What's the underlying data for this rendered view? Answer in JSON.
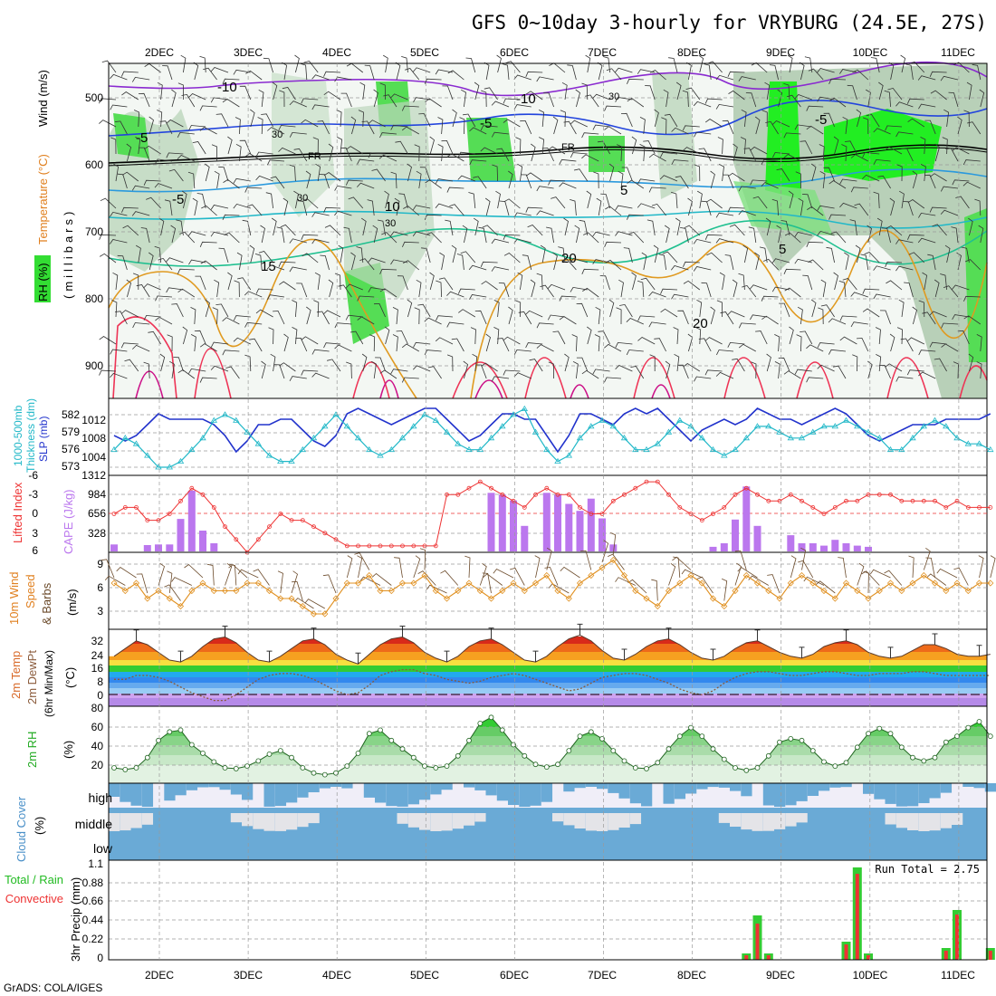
{
  "title": "GFS 0~10day 3-hourly for VRYBURG (24.5E, 27S)",
  "footer": "GrADS: COLA/IGES",
  "colors": {
    "green": "#33cc33",
    "red": "#ee3333",
    "blue": "#2233cc",
    "cyan": "#22b8c8",
    "purple": "#bb77ee",
    "orange": "#e09020",
    "brown": "#8a5a3a",
    "cloud": "#6aaad6"
  },
  "dates": [
    "2DEC",
    "3DEC",
    "4DEC",
    "5DEC",
    "6DEC",
    "7DEC",
    "8DEC",
    "9DEC",
    "10DEC",
    "11DEC"
  ],
  "panels": {
    "upper": {
      "labels": [
        "RH (%)",
        "Temperature (°C)",
        "Wind (m/s)",
        "(millibars)"
      ],
      "ticks": [
        "500",
        "600",
        "700",
        "800",
        "900"
      ],
      "contour_labels": [
        "-10",
        "-10",
        "-5",
        "-5",
        "-5",
        "FR",
        "FR",
        "-5",
        "5",
        "10",
        "15",
        "20",
        "20",
        "5",
        "30",
        "30",
        "30",
        "30"
      ]
    },
    "slp": {
      "labels": [
        "1000-500mb",
        "Thickness (dm)",
        "SLP (mb)"
      ],
      "thick_ticks": [
        "582",
        "579",
        "576",
        "573"
      ],
      "slp_ticks": [
        "1012",
        "1008",
        "1004"
      ]
    },
    "cape": {
      "labels": [
        "Lifted Index",
        "CAPE (J/kg)"
      ],
      "li_ticks": [
        "-6",
        "-3",
        "0",
        "3",
        "6"
      ],
      "cape_ticks": [
        "1312",
        "984",
        "656",
        "328"
      ]
    },
    "wind10": {
      "labels": [
        "10m Wind",
        "Speed",
        "& Barbs"
      ],
      "unit": "(m/s)",
      "ticks": [
        "9",
        "6",
        "3"
      ]
    },
    "temp": {
      "labels": [
        "2m Temp",
        "2m DewPt",
        "(6hr Min/Max)"
      ],
      "unit": "(°C)",
      "ticks": [
        "32",
        "24",
        "16",
        "8",
        "0"
      ]
    },
    "rh": {
      "label": "2m RH",
      "unit": "(%)",
      "ticks": [
        "80",
        "60",
        "40",
        "20"
      ]
    },
    "cloud": {
      "labels": [
        "Cloud Cover",
        "(%)"
      ],
      "levels": [
        "high",
        "middle",
        "low"
      ]
    },
    "precip": {
      "labels": [
        "Total / Rain",
        "Convective",
        "3hr Precip (mm)"
      ],
      "ticks": [
        "1.1",
        "0.88",
        "0.66",
        "0.44",
        "0.22",
        "0"
      ],
      "run_total": "Run Total = 2.75"
    }
  },
  "chart_data": [
    {
      "type": "line",
      "title": "Sea level pressure (mb)",
      "x": "3-hourly steps 0-79 from 1 Dec 12Z",
      "series": [
        {
          "name": "SLP",
          "values": [
            1008,
            1007,
            1008,
            1010,
            1012,
            1011,
            1011,
            1011,
            1011,
            1010,
            1008,
            1005,
            1007,
            1010,
            1010,
            1011,
            1011,
            1009,
            1007,
            1006,
            1008,
            1012,
            1013,
            1012,
            1011,
            1010,
            1011,
            1012,
            1013,
            1013,
            1011,
            1009,
            1007,
            1008,
            1010,
            1012,
            1012,
            1011,
            1011,
            1008,
            1005,
            1008,
            1012,
            1012,
            1011,
            1010,
            1012,
            1013,
            1012,
            1013,
            1011,
            1009,
            1007,
            1009,
            1010,
            1011,
            1010,
            1011,
            1013,
            1012,
            1011,
            1011,
            1010,
            1011,
            1012,
            1013,
            1012,
            1010,
            1008,
            1007,
            1008,
            1009,
            1010,
            1010,
            1010,
            1011,
            1011,
            1011,
            1011,
            1012
          ]
        }
      ]
    },
    {
      "type": "line",
      "title": "1000-500mb thickness (dm)",
      "x": "3-hourly steps",
      "series": [
        {
          "name": "Thickness",
          "values": [
            576,
            578,
            577,
            575,
            573,
            573,
            574,
            576,
            578,
            581,
            582,
            581,
            579,
            577,
            575,
            574,
            574,
            576,
            578,
            580,
            582,
            580,
            578,
            576,
            575,
            576,
            578,
            580,
            582,
            581,
            579,
            577,
            576,
            576,
            578,
            580,
            582,
            583,
            579,
            576,
            574,
            575,
            578,
            580,
            581,
            580,
            578,
            576,
            576,
            577,
            579,
            581,
            580,
            578,
            576,
            575,
            576,
            578,
            580,
            580,
            579,
            578,
            578,
            579,
            580,
            580,
            581,
            580,
            579,
            578,
            576,
            576,
            578,
            580,
            581,
            580,
            578,
            577,
            577,
            576
          ]
        }
      ]
    },
    {
      "type": "bar",
      "title": "CAPE (J/kg)",
      "x": "3-hourly steps",
      "values": [
        120,
        0,
        0,
        110,
        120,
        120,
        560,
        1050,
        360,
        140,
        0,
        0,
        0,
        0,
        0,
        0,
        0,
        0,
        0,
        0,
        0,
        0,
        0,
        0,
        0,
        0,
        0,
        0,
        0,
        0,
        0,
        0,
        0,
        0,
        1010,
        980,
        880,
        440,
        0,
        1010,
        980,
        820,
        700,
        910,
        570,
        120,
        0,
        0,
        0,
        0,
        0,
        0,
        0,
        0,
        80,
        140,
        550,
        1120,
        440,
        0,
        0,
        280,
        140,
        140,
        100,
        200,
        140,
        100,
        80,
        0,
        0,
        0,
        0,
        0,
        0,
        0,
        0,
        0,
        0,
        0
      ]
    },
    {
      "type": "line",
      "title": "Lifted Index",
      "x": "3-hourly steps",
      "series": [
        {
          "name": "LI",
          "values": [
            0,
            -1,
            -1,
            1,
            1,
            0,
            -2,
            -4,
            -3,
            -1,
            2,
            4,
            6,
            4,
            2,
            0,
            1,
            1,
            2,
            3,
            4,
            5,
            5,
            5,
            5,
            5,
            5,
            5,
            5,
            5,
            -3,
            -3,
            -4,
            -5,
            -4,
            -3,
            -2,
            -1,
            -3,
            -4,
            -3,
            -3,
            -1,
            0,
            0,
            -2,
            -3,
            -4,
            -5,
            -5,
            -3,
            -1,
            0,
            1,
            0,
            -1,
            -3,
            -4,
            -3,
            -2,
            -2,
            -3,
            -2,
            -1,
            0,
            -1,
            -2,
            -2,
            -3,
            -3,
            -3,
            -2,
            -2,
            -2,
            -2,
            -1,
            -2,
            -1,
            -1,
            -1
          ]
        }
      ]
    },
    {
      "type": "line",
      "title": "10m wind speed (m/s)",
      "x": "3-hourly steps",
      "series": [
        {
          "name": "Speed",
          "values": [
            6,
            5,
            6,
            4,
            5,
            4,
            3,
            5,
            6,
            5,
            5,
            5,
            6,
            6,
            5,
            4,
            4,
            3,
            2,
            2,
            4,
            6,
            6,
            7,
            5,
            5,
            6,
            6,
            7,
            5,
            4,
            5,
            6,
            5,
            4,
            5,
            6,
            5,
            6,
            7,
            5,
            4,
            6,
            7,
            8,
            9,
            7,
            5,
            4,
            3,
            5,
            6,
            7,
            6,
            4,
            3,
            5,
            7,
            6,
            5,
            4,
            6,
            7,
            6,
            5,
            4,
            6,
            5,
            4,
            5,
            6,
            5,
            6,
            7,
            6,
            5,
            6,
            5,
            6,
            6
          ]
        }
      ]
    },
    {
      "type": "area",
      "title": "2m Temperature / Dew point (°C)",
      "x": "3-hourly steps",
      "series": [
        {
          "name": "2m Temp",
          "values": [
            22,
            26,
            30,
            28,
            24,
            20,
            19,
            22,
            27,
            31,
            32,
            29,
            24,
            20,
            19,
            22,
            26,
            30,
            31,
            28,
            23,
            20,
            18,
            23,
            28,
            31,
            32,
            29,
            24,
            21,
            19,
            22,
            27,
            30,
            31,
            28,
            24,
            20,
            19,
            22,
            27,
            31,
            33,
            30,
            25,
            21,
            20,
            23,
            27,
            30,
            31,
            28,
            24,
            21,
            20,
            22,
            26,
            29,
            30,
            27,
            24,
            22,
            21,
            23,
            27,
            29,
            30,
            28,
            24,
            22,
            21,
            22,
            25,
            28,
            28,
            26,
            23,
            22,
            22,
            23
          ]
        },
        {
          "name": "2m DewPt",
          "values": [
            10,
            10,
            12,
            12,
            11,
            9,
            6,
            3,
            1,
            -1,
            -1,
            2,
            6,
            10,
            12,
            13,
            13,
            12,
            10,
            7,
            4,
            2,
            3,
            7,
            12,
            14,
            15,
            15,
            13,
            12,
            10,
            9,
            8,
            9,
            11,
            12,
            13,
            12,
            10,
            8,
            6,
            4,
            5,
            8,
            11,
            12,
            13,
            13,
            12,
            10,
            8,
            5,
            3,
            2,
            4,
            8,
            11,
            13,
            14,
            14,
            13,
            12,
            12,
            13,
            14,
            14,
            13,
            12,
            12,
            13,
            13,
            13,
            14,
            14,
            13,
            12,
            12,
            12,
            12,
            12
          ]
        }
      ]
    },
    {
      "type": "area",
      "title": "2m RH (%)",
      "x": "3-hourly steps",
      "series": [
        {
          "name": "RH",
          "values": [
            18,
            16,
            18,
            30,
            50,
            60,
            62,
            45,
            35,
            25,
            18,
            17,
            20,
            26,
            34,
            38,
            30,
            18,
            12,
            10,
            12,
            20,
            35,
            58,
            62,
            50,
            40,
            30,
            20,
            18,
            20,
            32,
            50,
            70,
            77,
            62,
            45,
            32,
            22,
            19,
            22,
            38,
            55,
            60,
            52,
            38,
            26,
            18,
            17,
            24,
            40,
            55,
            65,
            55,
            40,
            28,
            18,
            15,
            18,
            32,
            48,
            52,
            50,
            38,
            25,
            20,
            24,
            42,
            58,
            64,
            58,
            42,
            30,
            26,
            30,
            48,
            55,
            65,
            72,
            55
          ]
        }
      ]
    },
    {
      "type": "bar",
      "title": "3hr Precip (mm)",
      "x": "3-hourly steps",
      "run_total": 2.75,
      "series": [
        {
          "name": "Total",
          "values": {
            "58": 0.07,
            "59": 0.49,
            "60": 0.07,
            "67": 0.2,
            "68": 1.02,
            "69": 0.07,
            "76": 0.13,
            "77": 0.55,
            "80": 0.13
          }
        },
        {
          "name": "Convective",
          "values": {
            "58": 0.05,
            "59": 0.4,
            "60": 0.05,
            "67": 0.17,
            "68": 0.95,
            "69": 0.05,
            "76": 0.1,
            "77": 0.5,
            "80": 0.1
          }
        }
      ]
    }
  ]
}
